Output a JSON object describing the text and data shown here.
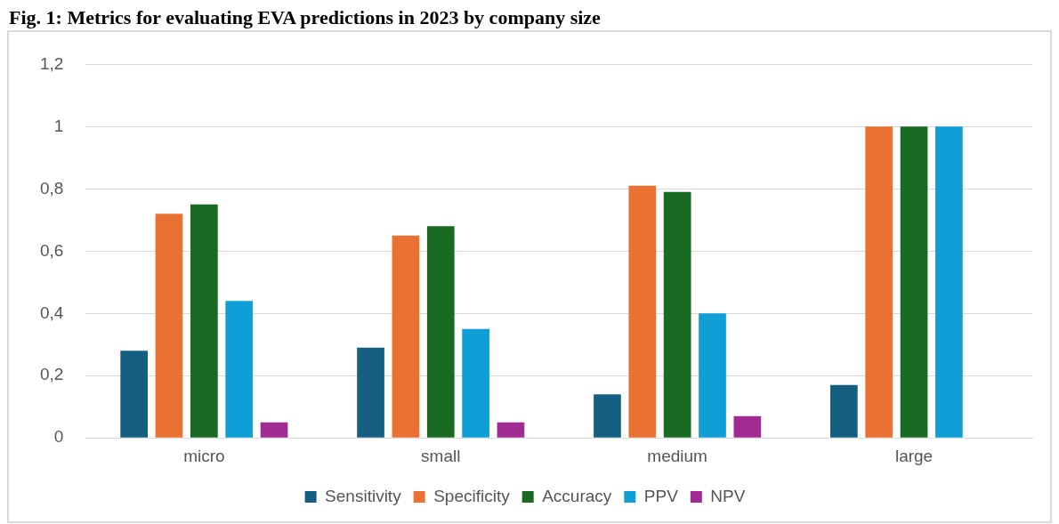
{
  "chart_data": {
    "type": "bar",
    "title": "Fig. 1: Metrics for evaluating EVA predictions in 2023 by company size",
    "categories": [
      "micro",
      "small",
      "medium",
      "large"
    ],
    "series": [
      {
        "name": "Sensitivity",
        "color": "#156082",
        "values": [
          0.28,
          0.29,
          0.14,
          0.17
        ]
      },
      {
        "name": "Specificity",
        "color": "#e97132",
        "values": [
          0.72,
          0.65,
          0.81,
          1
        ]
      },
      {
        "name": "Accuracy",
        "color": "#196b24",
        "values": [
          0.75,
          0.68,
          0.79,
          1
        ]
      },
      {
        "name": "PPV",
        "color": "#0f9ed5",
        "values": [
          0.44,
          0.35,
          0.4,
          1
        ]
      },
      {
        "name": "NPV",
        "color": "#a02b93",
        "values": [
          0.05,
          0.05,
          0.07,
          0
        ]
      }
    ],
    "ylim": [
      0,
      1.2
    ],
    "yticks": [
      0,
      {
        "value": 0.2,
        "label": "0,2"
      },
      {
        "value": 0.4,
        "label": "0,4"
      },
      {
        "value": 0.6,
        "label": "0,6"
      },
      {
        "value": 0.8,
        "label": "0,8"
      },
      1,
      {
        "value": 1.2,
        "label": "1,2"
      }
    ],
    "grid": "y",
    "legend": "bottom"
  }
}
